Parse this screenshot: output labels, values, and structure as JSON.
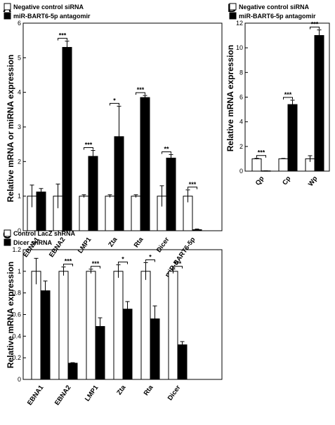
{
  "chart_data": [
    {
      "panel": "A",
      "type": "bar",
      "ylabel": "Relative mRNA or miRNA expression",
      "ylim": [
        0,
        6
      ],
      "yticks": [
        "0",
        "1",
        "2",
        "3",
        "4",
        "5",
        "6"
      ],
      "categories": [
        "EBNA1",
        "EBNA2",
        "LMP1",
        "Zta",
        "Rta",
        "Dicer",
        "miR-BART6-5p"
      ],
      "series": [
        {
          "name": "Negative control siRNA",
          "color": "#ffffff",
          "values": [
            1.0,
            1.0,
            1.0,
            1.0,
            1.0,
            1.0,
            1.0
          ],
          "errors": [
            0.32,
            0.35,
            0.04,
            0.04,
            0.04,
            0.3,
            0.18
          ]
        },
        {
          "name": "miR-BART6-5p antagomir",
          "color": "#000000",
          "values": [
            1.12,
            5.3,
            2.15,
            2.72,
            3.85,
            2.1,
            0.03
          ],
          "errors": [
            0.1,
            0.18,
            0.17,
            0.88,
            0.06,
            0.1,
            0.02
          ]
        }
      ],
      "significance": [
        "",
        "***",
        "***",
        "*",
        "***",
        "**",
        "***"
      ],
      "legend": "top-left"
    },
    {
      "panel": "B",
      "type": "bar",
      "ylabel": "Relative mRNA expression",
      "ylim": [
        0,
        12
      ],
      "yticks": [
        "0",
        "2",
        "4",
        "6",
        "8",
        "10",
        "12"
      ],
      "categories": [
        "Qp",
        "Cp",
        "Wp"
      ],
      "series": [
        {
          "name": "Negative control siRNA",
          "color": "#ffffff",
          "values": [
            1.0,
            1.0,
            1.0
          ],
          "errors": [
            0.04,
            0.03,
            0.25
          ]
        },
        {
          "name": "miR-BART6-5p antagomir",
          "color": "#000000",
          "values": [
            0.02,
            5.4,
            11.0
          ],
          "errors": [
            0.01,
            0.35,
            0.45
          ]
        }
      ],
      "significance": [
        "***",
        "***",
        "***"
      ],
      "legend": "top-left"
    },
    {
      "panel": "C",
      "type": "bar",
      "ylabel": "Relative mRNA expression",
      "ylim": [
        0,
        1.2
      ],
      "yticks": [
        "0",
        "0.2",
        "0.4",
        "0.6",
        "0.8",
        "1",
        "1.2"
      ],
      "categories": [
        "EBNA1",
        "EBNA2",
        "LMP1",
        "Zta",
        "Rta",
        "Dicer"
      ],
      "series": [
        {
          "name": "Control LacZ shRNA",
          "color": "#ffffff",
          "values": [
            1.0,
            1.0,
            1.0,
            1.0,
            1.0,
            1.0
          ],
          "errors": [
            0.12,
            0.04,
            0.02,
            0.06,
            0.08,
            0.02
          ]
        },
        {
          "name": "Dicer shRNA",
          "color": "#000000",
          "values": [
            0.82,
            0.15,
            0.49,
            0.65,
            0.56,
            0.32
          ],
          "errors": [
            0.09,
            0.005,
            0.08,
            0.07,
            0.12,
            0.03
          ]
        }
      ],
      "significance": [
        "",
        "***",
        "***",
        "*",
        "*",
        "***"
      ],
      "legend": "top-left"
    }
  ]
}
